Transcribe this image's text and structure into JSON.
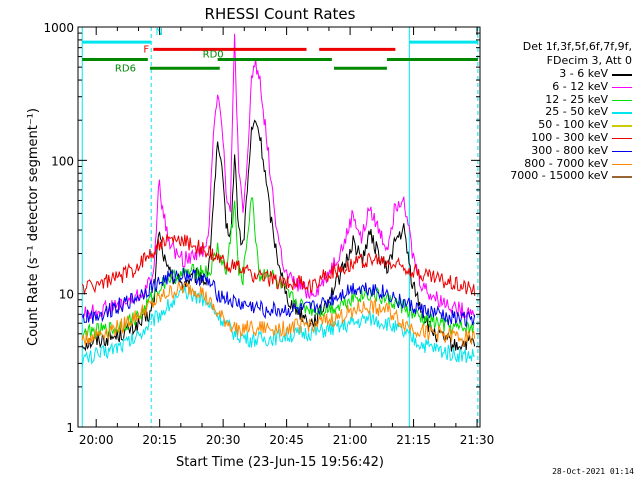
{
  "chart_data": {
    "type": "line",
    "title": "RHESSI Count Rates",
    "xlabel": "Start Time (23-Jun-15 19:56:42)",
    "ylabel": "Count Rate (s⁻¹ detector segment⁻¹)",
    "yscale": "log",
    "ylim": [
      1,
      1000
    ],
    "xlim": [
      -1,
      94
    ],
    "x_ticks": [
      {
        "x": 3.3,
        "label": "20:00"
      },
      {
        "x": 18.3,
        "label": "20:15"
      },
      {
        "x": 33.3,
        "label": "20:30"
      },
      {
        "x": 48.3,
        "label": "20:45"
      },
      {
        "x": 63.3,
        "label": "21:00"
      },
      {
        "x": 78.3,
        "label": "21:15"
      },
      {
        "x": 93.3,
        "label": "21:30"
      }
    ],
    "y_ticks": [
      {
        "y": 1,
        "label": "1"
      },
      {
        "y": 10,
        "label": "10"
      },
      {
        "y": 100,
        "label": "100"
      },
      {
        "y": 1000,
        "label": "1000"
      }
    ],
    "grid": false,
    "legend_position": "right",
    "legend_header": [
      "Det 1f,3f,5f,6f,7f,9f,",
      "FDecim 3, Att 0"
    ],
    "vertical_lines": [
      {
        "x": 0,
        "style": "solid",
        "color": "#00e5ee"
      },
      {
        "x": 16.3,
        "style": "dashed",
        "color": "#00e5ee"
      },
      {
        "x": 77.3,
        "style": "solid",
        "color": "#00e5ee"
      },
      {
        "x": 93.5,
        "style": "dashed",
        "color": "#00e5ee"
      }
    ],
    "flag_bars": [
      {
        "label": "",
        "color": "#00e5ee",
        "y": 770,
        "segments": [
          [
            0,
            16.3
          ],
          [
            77.3,
            93.5
          ]
        ]
      },
      {
        "label": "F",
        "color": "#ee0000",
        "y": 680,
        "segments": [
          [
            16.8,
            53
          ],
          [
            56,
            74
          ]
        ]
      },
      {
        "label": "RD0",
        "color": "#008800",
        "y": 570,
        "segments": [
          [
            0,
            15.5
          ],
          [
            32,
            59
          ],
          [
            72,
            93.5
          ]
        ]
      },
      {
        "label": "RD6",
        "color": "#008800",
        "y": 490,
        "segments": [
          [
            16,
            32.5
          ],
          [
            59.5,
            72
          ]
        ]
      }
    ],
    "flag_marker": {
      "label": "N",
      "x": 17.3,
      "y": 870,
      "color": "#00e5ee"
    },
    "series": [
      {
        "name": "3 - 6 keV",
        "color": "#000000",
        "x": [
          0,
          4,
          8,
          12,
          14,
          16,
          17,
          18,
          20,
          22,
          24,
          26,
          28,
          29,
          30,
          31,
          32,
          33,
          34,
          35,
          36,
          37,
          38,
          39,
          40,
          41,
          42,
          43,
          44,
          45,
          46,
          47,
          48,
          50,
          52,
          54,
          56,
          58,
          60,
          62,
          64,
          66,
          68,
          70,
          72,
          74,
          76,
          78,
          80,
          82,
          84,
          86,
          88,
          90,
          92,
          93
        ],
        "y": [
          4.2,
          4.5,
          4.8,
          5.5,
          6,
          7,
          9,
          30,
          15,
          13,
          12,
          13,
          14,
          12,
          16,
          50,
          130,
          80,
          35,
          25,
          110,
          30,
          22,
          60,
          160,
          200,
          150,
          90,
          50,
          30,
          20,
          15,
          10,
          8,
          7,
          6,
          7,
          9,
          12,
          16,
          25,
          18,
          28,
          20,
          15,
          25,
          30,
          12,
          8,
          5.5,
          4.8,
          4.5,
          4,
          4.2,
          4.3,
          4.2
        ]
      },
      {
        "name": "6 - 12 keV",
        "color": "#ff00ff",
        "x": [
          0,
          4,
          8,
          12,
          14,
          16,
          17,
          18,
          20,
          22,
          24,
          26,
          28,
          29,
          30,
          31,
          32,
          33,
          34,
          35,
          36,
          37,
          38,
          39,
          40,
          41,
          42,
          43,
          44,
          45,
          46,
          47,
          48,
          50,
          52,
          54,
          56,
          58,
          60,
          62,
          64,
          66,
          68,
          70,
          72,
          74,
          76,
          78,
          80,
          82,
          84,
          86,
          88,
          90,
          92,
          93
        ],
        "y": [
          7,
          7.5,
          8,
          9,
          10,
          12,
          15,
          70,
          28,
          20,
          18,
          19,
          22,
          20,
          30,
          180,
          330,
          200,
          60,
          40,
          870,
          80,
          40,
          90,
          420,
          540,
          400,
          210,
          110,
          55,
          30,
          20,
          14,
          12,
          11,
          10,
          11,
          14,
          18,
          24,
          40,
          25,
          45,
          30,
          22,
          45,
          55,
          20,
          12,
          10,
          9,
          8.5,
          8,
          7.5,
          7.5,
          7.5
        ]
      },
      {
        "name": "12 - 25 keV",
        "color": "#00dd00",
        "x": [
          0,
          8,
          14,
          17,
          20,
          24,
          28,
          30,
          32,
          34,
          36,
          37,
          38,
          40,
          42,
          44,
          46,
          48,
          52,
          56,
          60,
          64,
          68,
          72,
          76,
          78,
          80,
          84,
          88,
          92,
          93
        ],
        "y": [
          5,
          5.5,
          7,
          10,
          13,
          14,
          15,
          14,
          22,
          14,
          48,
          14,
          13,
          55,
          13,
          15,
          12,
          10,
          8,
          7.5,
          8,
          9.5,
          10,
          9,
          8,
          7,
          6.5,
          6,
          5.5,
          5.5,
          5.5
        ]
      },
      {
        "name": "25 - 50 keV",
        "color": "#00e5ee",
        "x": [
          0,
          4,
          8,
          12,
          16,
          20,
          24,
          28,
          32,
          36,
          40,
          44,
          48,
          52,
          56,
          60,
          64,
          68,
          72,
          76,
          80,
          84,
          88,
          92,
          93
        ],
        "y": [
          3.2,
          3.5,
          4,
          4.5,
          6,
          8,
          10,
          9.5,
          7,
          5,
          4.5,
          4.6,
          4.8,
          5,
          5.2,
          5.5,
          6,
          6.5,
          6,
          5,
          4.2,
          3.8,
          3.5,
          3.4,
          3.4
        ]
      },
      {
        "name": "50 - 100 keV",
        "color": "#cccc00",
        "x": [
          0,
          93
        ],
        "y": [
          null,
          null
        ]
      },
      {
        "name": "100 - 300 keV",
        "color": "#ee0000",
        "x": [
          0,
          4,
          8,
          12,
          16,
          18,
          20,
          24,
          28,
          30,
          32,
          34,
          36,
          38,
          40,
          44,
          48,
          52,
          54,
          56,
          60,
          64,
          68,
          72,
          76,
          80,
          84,
          88,
          92,
          93
        ],
        "y": [
          11,
          12,
          13,
          15,
          20,
          23,
          25,
          25,
          22,
          20,
          18,
          17,
          16,
          15,
          14,
          13,
          12,
          12,
          11,
          13,
          15,
          17,
          18,
          17,
          16,
          14,
          13,
          12,
          11,
          11
        ]
      },
      {
        "name": "300 - 800 keV",
        "color": "#0000ee",
        "x": [
          0,
          4,
          8,
          12,
          16,
          20,
          24,
          28,
          30,
          32,
          36,
          40,
          44,
          48,
          52,
          56,
          60,
          64,
          68,
          72,
          76,
          80,
          84,
          88,
          92,
          93
        ],
        "y": [
          6.5,
          7,
          8,
          9,
          11,
          13,
          14,
          13,
          12,
          10,
          8.5,
          8,
          7.5,
          7.5,
          7.5,
          8,
          9.5,
          11,
          11,
          10,
          8.5,
          7.5,
          7,
          6.5,
          6.5,
          6.5
        ]
      },
      {
        "name": "800 - 7000 keV",
        "color": "#ff8800",
        "x": [
          0,
          4,
          8,
          12,
          16,
          20,
          24,
          28,
          32,
          36,
          40,
          44,
          48,
          52,
          56,
          60,
          64,
          68,
          72,
          76,
          80,
          84,
          88,
          92,
          93
        ],
        "y": [
          4.5,
          5,
          5.5,
          6.5,
          8,
          10,
          11,
          10.5,
          7,
          5.5,
          5.5,
          5.5,
          5.5,
          5.8,
          6,
          6.5,
          7.5,
          8,
          7.5,
          6,
          5.2,
          5,
          4.8,
          4.6,
          4.6
        ]
      },
      {
        "name": "7000 - 15000 keV",
        "color": "#996633",
        "x": [
          0,
          93
        ],
        "y": [
          null,
          null
        ]
      }
    ]
  },
  "footer": {
    "timestamp": "28-Oct-2021 01:14"
  }
}
